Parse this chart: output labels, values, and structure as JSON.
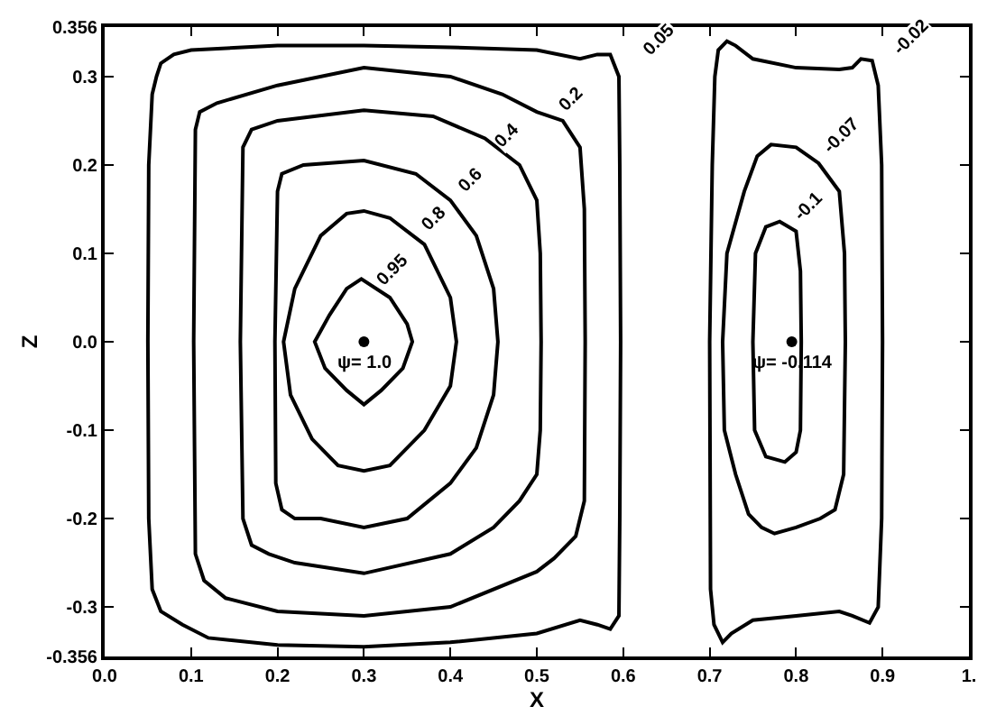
{
  "chart_data": {
    "type": "scatter",
    "xlabel": "X",
    "ylabel": "Z",
    "xlim": [
      0,
      1
    ],
    "ylim": [
      -0.356,
      0.356
    ],
    "xticks": [
      {
        "value": 0,
        "label": "0.0"
      },
      {
        "value": 0.1,
        "label": "0.1"
      },
      {
        "value": 0.2,
        "label": "0.2"
      },
      {
        "value": 0.3,
        "label": "0.3"
      },
      {
        "value": 0.4,
        "label": "0.4"
      },
      {
        "value": 0.5,
        "label": "0.5"
      },
      {
        "value": 0.6,
        "label": "0.6"
      },
      {
        "value": 0.7,
        "label": "0.7"
      },
      {
        "value": 0.8,
        "label": "0.8"
      },
      {
        "value": 0.9,
        "label": "0.9"
      },
      {
        "value": 1,
        "label": "1."
      }
    ],
    "yticks": [
      {
        "value": -0.356,
        "label": "-0.356"
      },
      {
        "value": -0.3,
        "label": "-0.3"
      },
      {
        "value": -0.2,
        "label": "-0.2"
      },
      {
        "value": -0.1,
        "label": "-0.1"
      },
      {
        "value": 0,
        "label": "0.0"
      },
      {
        "value": 0.1,
        "label": "0.1"
      },
      {
        "value": 0.2,
        "label": "0.2"
      },
      {
        "value": 0.3,
        "label": "0.3"
      },
      {
        "value": 0.356,
        "label": "0.356"
      }
    ],
    "grid": false,
    "marker": "circle",
    "series": [
      {
        "color": "#000000",
        "x": [
          0.3,
          0.795
        ],
        "values": [
          0,
          0
        ]
      }
    ],
    "annotations": [
      {
        "text": "0.05",
        "x": 0.642,
        "y": 0.34
      },
      {
        "text": "0.2",
        "x": 0.54,
        "y": 0.273
      },
      {
        "text": "0.4",
        "x": 0.466,
        "y": 0.233
      },
      {
        "text": "0.6",
        "x": 0.423,
        "y": 0.182
      },
      {
        "text": "0.8",
        "x": 0.382,
        "y": 0.138
      },
      {
        "text": "0.95",
        "x": 0.335,
        "y": 0.081
      },
      {
        "text": "-0.02",
        "x": 0.935,
        "y": 0.344
      },
      {
        "text": "-0.07",
        "x": 0.853,
        "y": 0.233
      },
      {
        "text": "-0.1",
        "x": 0.816,
        "y": 0.152
      },
      {
        "text": "ψ= 1.0",
        "x": 0.3,
        "y": 0
      },
      {
        "text": "ψ= -0.114",
        "x": 0.795,
        "y": 0
      }
    ]
  }
}
